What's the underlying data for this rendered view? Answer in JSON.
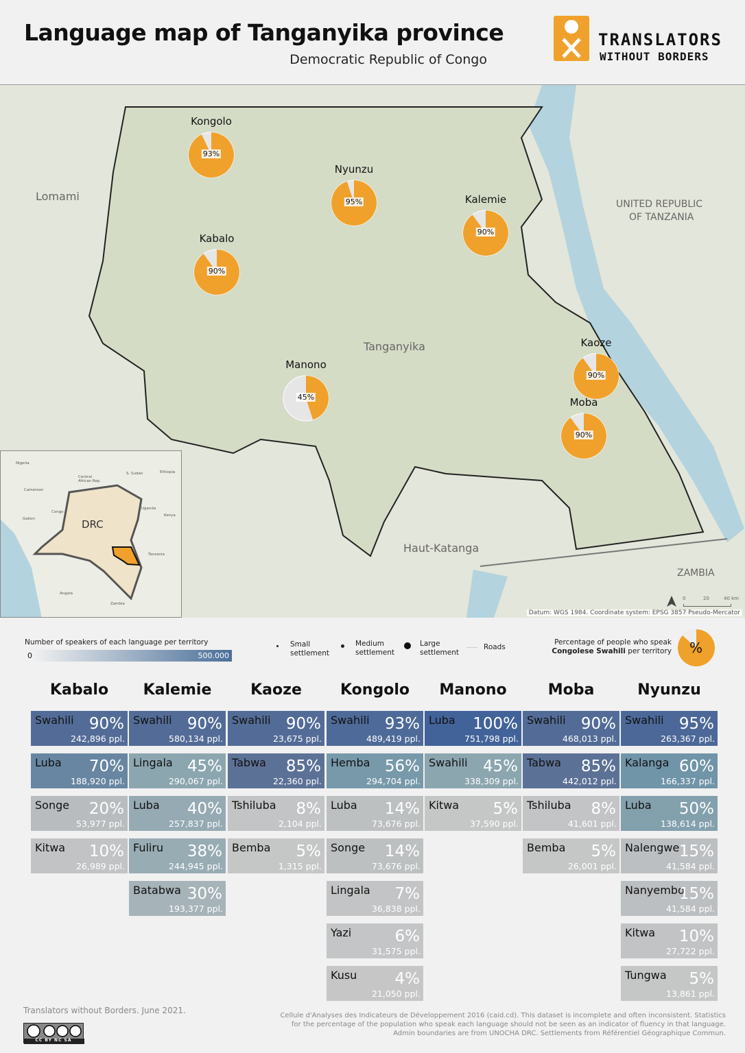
{
  "header": {
    "title": "Language map of Tanganyika province",
    "subtitle": "Democratic Republic of Congo",
    "logo_line1": "TRANSLATORS",
    "logo_line2": "WITHOUT BORDERS"
  },
  "map": {
    "regions": {
      "lomami": "Lomami",
      "tanganyika": "Tanganyika",
      "haut_katanga": "Haut-Katanga",
      "tanzania_1": "UNITED REPUBLIC",
      "tanzania_2": "OF TANZANIA",
      "zambia": "ZAMBIA"
    },
    "territories": [
      {
        "name": "Kongolo",
        "swahili_pct": 93
      },
      {
        "name": "Nyunzu",
        "swahili_pct": 95
      },
      {
        "name": "Kalemie",
        "swahili_pct": 90
      },
      {
        "name": "Kabalo",
        "swahili_pct": 90
      },
      {
        "name": "Manono",
        "swahili_pct": 45
      },
      {
        "name": "Kaoze",
        "swahili_pct": 90
      },
      {
        "name": "Moba",
        "swahili_pct": 90
      }
    ],
    "inset": {
      "drc": "DRC",
      "countries": [
        "Nigeria",
        "Central African Rep.",
        "S. Sudan",
        "Ethiopia",
        "Cameroon",
        "Gabon",
        "Congo",
        "Uganda",
        "Kenya",
        "Tanzania",
        "Angola",
        "Zambia"
      ]
    },
    "scale": {
      "t0": "0",
      "t1": "20",
      "t2": "40 km"
    },
    "datum": "Datum: WGS 1984. Coordinate system: EPSG 3857 Pseudo-Mercator",
    "colors": {
      "pie": "#f0a12b",
      "pie_rest": "#e6e6e6",
      "land": "#dfe3d4",
      "province": "#d5dcc6",
      "lake": "#b3d3de"
    }
  },
  "legend": {
    "gradient_title": "Number of speakers of each language per territory",
    "gradient_min": "0",
    "gradient_max": "500.000",
    "small": "Small settlement",
    "medium": "Medium settlement",
    "large": "Large settlement",
    "roads": "Roads",
    "pct_title": "Percentage of people who speak",
    "pct_bold": "Congolese Swahili",
    "pct_rest": "per territory",
    "pct_symbol": "%"
  },
  "table": [
    {
      "territory": "Kabalo",
      "langs": [
        [
          "Swahili",
          "90%",
          "242,896 ppl."
        ],
        [
          "Luba",
          "70%",
          "188,920 ppl."
        ],
        [
          "Songe",
          "20%",
          "53,977 ppl."
        ],
        [
          "Kitwa",
          "10%",
          "26,989 ppl."
        ]
      ]
    },
    {
      "territory": "Kalemie",
      "langs": [
        [
          "Swahili",
          "90%",
          "580,134 ppl."
        ],
        [
          "Lingala",
          "45%",
          "290,067 ppl."
        ],
        [
          "Luba",
          "40%",
          "257,837 ppl."
        ],
        [
          "Fuliru",
          "38%",
          "244,945 ppl."
        ],
        [
          "Batabwa",
          "30%",
          "193,377 ppl."
        ]
      ]
    },
    {
      "territory": "Kaoze",
      "langs": [
        [
          "Swahili",
          "90%",
          "23,675 ppl."
        ],
        [
          "Tabwa",
          "85%",
          "22,360 ppl."
        ],
        [
          "Tshiluba",
          "8%",
          "2,104 ppl."
        ],
        [
          "Bemba",
          "5%",
          "1,315 ppl."
        ]
      ]
    },
    {
      "territory": "Kongolo",
      "langs": [
        [
          "Swahili",
          "93%",
          "489,419 ppl."
        ],
        [
          "Hemba",
          "56%",
          "294,704 ppl."
        ],
        [
          "Luba",
          "14%",
          "73,676 ppl."
        ],
        [
          "Songe",
          "14%",
          "73,676 ppl."
        ],
        [
          "Lingala",
          "7%",
          "36,838 ppl."
        ],
        [
          "Yazi",
          "6%",
          "31,575 ppl."
        ],
        [
          "Kusu",
          "4%",
          "21,050 ppl."
        ]
      ]
    },
    {
      "territory": "Manono",
      "langs": [
        [
          "Luba",
          "100%",
          "751,798 ppl."
        ],
        [
          "Swahili",
          "45%",
          "338,309 ppl."
        ],
        [
          "Kitwa",
          "5%",
          "37,590 ppl."
        ]
      ]
    },
    {
      "territory": "Moba",
      "langs": [
        [
          "Swahili",
          "90%",
          "468,013 ppl."
        ],
        [
          "Tabwa",
          "85%",
          "442,012 ppl."
        ],
        [
          "Tshiluba",
          "8%",
          "41,601 ppl."
        ],
        [
          "Bemba",
          "5%",
          "26,001 ppl."
        ]
      ]
    },
    {
      "territory": "Nyunzu",
      "langs": [
        [
          "Swahili",
          "95%",
          "263,367 ppl."
        ],
        [
          "Kalanga",
          "60%",
          "166,337 ppl."
        ],
        [
          "Luba",
          "50%",
          "138,614 ppl."
        ],
        [
          "Nalengwe",
          "15%",
          "41,584 ppl."
        ],
        [
          "Nanyembo",
          "15%",
          "41,584 ppl."
        ],
        [
          "Kitwa",
          "10%",
          "27,722 ppl."
        ],
        [
          "Tungwa",
          "5%",
          "13,861 ppl."
        ]
      ]
    }
  ],
  "footer": {
    "credit": "Translators without Borders. June 2021.",
    "license": "CC BY NC SA",
    "source1": "Cellule d'Analyses des Indicateurs de Développement 2016 (caid.cd). This dataset is incomplete and often inconsistent. Statistics",
    "source2": "for the percentage of the population who speak each language should not be seen as an indicator of fluency in that language.",
    "source3": "Admin boundaries are from UNOCHA DRC. Settlements from Référentiel Géographique Commun."
  }
}
